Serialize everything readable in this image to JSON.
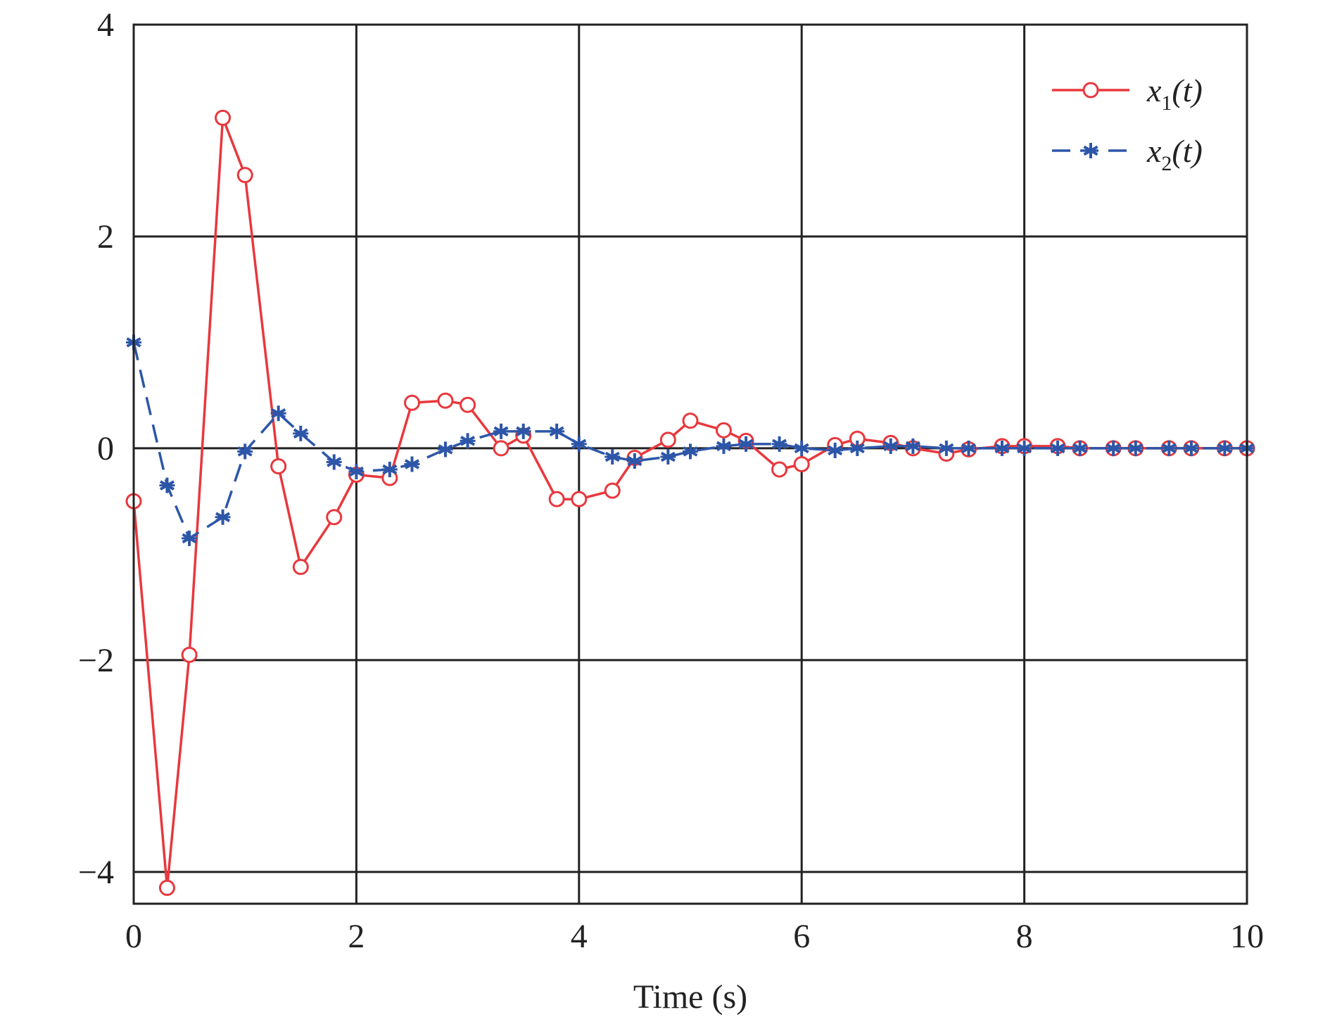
{
  "chart_data": {
    "type": "line",
    "title": "",
    "xlabel": "Time (s)",
    "ylabel": "",
    "xlim": [
      0,
      10
    ],
    "ylim": [
      -4.3,
      4
    ],
    "grid": true,
    "legend_position": "top-right",
    "x_ticks": [
      0,
      2,
      4,
      6,
      8,
      10
    ],
    "x_tick_labels": [
      "0",
      "2",
      "4",
      "6",
      "8",
      "10"
    ],
    "y_ticks": [
      -4,
      -2,
      0,
      2,
      4
    ],
    "y_tick_labels": [
      "−4",
      "−2",
      "0",
      "2",
      "4"
    ],
    "series": [
      {
        "name": "x1(t)",
        "legend": {
          "prefix": "x",
          "sub": "1",
          "suffix": "(t)"
        },
        "color": "#e8383d",
        "marker": "circle",
        "line_style": "solid",
        "x": [
          0,
          0.3,
          0.5,
          0.8,
          1.0,
          1.3,
          1.5,
          1.8,
          2.0,
          2.3,
          2.5,
          2.8,
          3.0,
          3.3,
          3.5,
          3.8,
          4.0,
          4.3,
          4.5,
          4.8,
          5.0,
          5.3,
          5.5,
          5.8,
          6.0,
          6.3,
          6.5,
          6.8,
          7.0,
          7.3,
          7.5,
          7.8,
          8.0,
          8.3,
          8.5,
          8.8,
          9.0,
          9.3,
          9.5,
          9.8,
          10.0
        ],
        "y": [
          -0.5,
          -4.15,
          -1.95,
          3.12,
          2.58,
          -0.17,
          -1.12,
          -0.65,
          -0.25,
          -0.28,
          0.43,
          0.45,
          0.41,
          0.0,
          0.12,
          -0.48,
          -0.48,
          -0.4,
          -0.09,
          0.08,
          0.26,
          0.17,
          0.07,
          -0.2,
          -0.15,
          0.03,
          0.09,
          0.05,
          0.0,
          -0.05,
          -0.01,
          0.02,
          0.02,
          0.02,
          0.0,
          0.0,
          0.0,
          0.0,
          0.0,
          0.0,
          0.0
        ]
      },
      {
        "name": "x2(t)",
        "legend": {
          "prefix": "x",
          "sub": "2",
          "suffix": "(t)"
        },
        "color": "#2d56a8",
        "marker": "asterisk",
        "line_style": "dashed",
        "x": [
          0,
          0.3,
          0.5,
          0.8,
          1.0,
          1.3,
          1.5,
          1.8,
          2.0,
          2.3,
          2.5,
          2.8,
          3.0,
          3.3,
          3.5,
          3.8,
          4.0,
          4.3,
          4.5,
          4.8,
          5.0,
          5.3,
          5.5,
          5.8,
          6.0,
          6.3,
          6.5,
          6.8,
          7.0,
          7.3,
          7.5,
          7.8,
          8.0,
          8.3,
          8.5,
          8.8,
          9.0,
          9.3,
          9.5,
          9.8,
          10.0
        ],
        "y": [
          1.0,
          -0.35,
          -0.85,
          -0.65,
          -0.03,
          0.33,
          0.14,
          -0.13,
          -0.22,
          -0.2,
          -0.15,
          -0.01,
          0.07,
          0.16,
          0.16,
          0.16,
          0.04,
          -0.08,
          -0.12,
          -0.08,
          -0.03,
          0.02,
          0.04,
          0.04,
          0.0,
          -0.02,
          0.0,
          0.02,
          0.02,
          0.0,
          0.0,
          0.0,
          0.0,
          0.0,
          0.0,
          0.0,
          0.0,
          0.0,
          0.0,
          0.0,
          0.0
        ]
      }
    ]
  }
}
